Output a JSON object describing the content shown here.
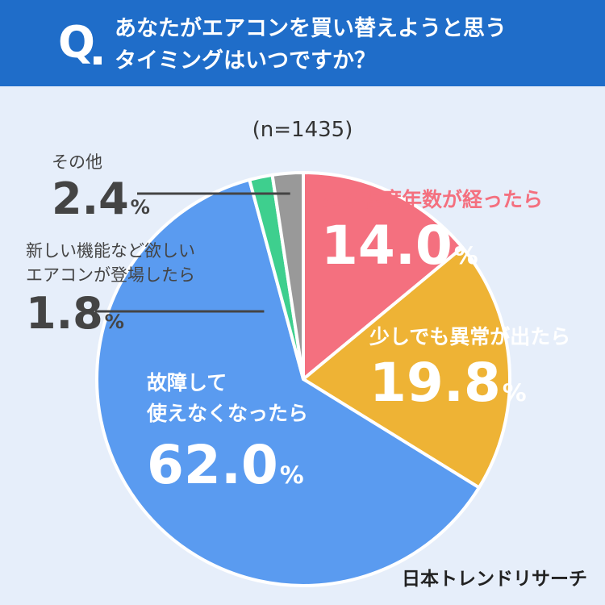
{
  "question": {
    "mark": "Q",
    "lines": [
      "あなたがエアコンを買い替えようと思う",
      "タイミングはいつですか？"
    ]
  },
  "sample": "(n=1435)",
  "brand": "日本トレンドリサーチ",
  "chart_data": {
    "type": "pie",
    "start_angle_deg": 0,
    "direction": "clockwise",
    "slices": [
      {
        "label_lines": [
          "ある程度年数が経ったら"
        ],
        "value": 14.0,
        "value_text": "14.0",
        "color": "#f4707f"
      },
      {
        "label_lines": [
          "少しでも異常が出たら"
        ],
        "value": 19.8,
        "value_text": "19.8",
        "color": "#eeb335"
      },
      {
        "label_lines": [
          "故障して",
          "使えなくなったら"
        ],
        "value": 62.0,
        "value_text": "62.0",
        "color": "#5a9bf0"
      },
      {
        "label_lines": [
          "新しい機能など欲しい",
          "エアコンが登場したら"
        ],
        "value": 1.8,
        "value_text": "1.8",
        "color": "#3ecf8e"
      },
      {
        "label_lines": [
          "その他"
        ],
        "value": 2.4,
        "value_text": "2.4",
        "color": "#999999"
      }
    ],
    "percent_sign": "%"
  }
}
